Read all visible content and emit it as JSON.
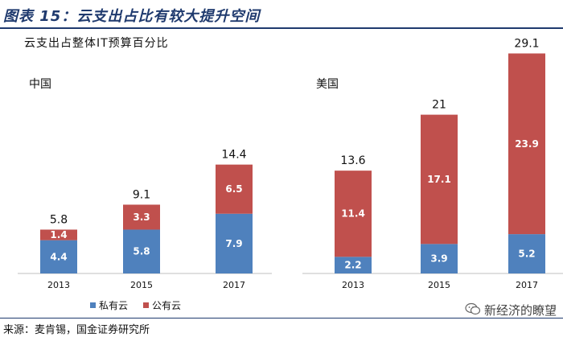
{
  "header": {
    "title": "图表 15：云支出占比有较大提升空间"
  },
  "footer": {
    "source": "来源：麦肯锡，国金证券研究所",
    "watermark": "新经济的瞭望"
  },
  "colors": {
    "private": "#4f81bd",
    "public": "#c0504d",
    "title": "#1f3a6e"
  },
  "chart_data": {
    "type": "bar",
    "stacked": true,
    "title": "云支出占整体IT预算百分比",
    "categories": [
      "2013",
      "2015",
      "2017"
    ],
    "legend": [
      "私有云",
      "公有云"
    ],
    "legend_position": "bottom-left",
    "panels": [
      {
        "name": "中国",
        "ylim": [
          0,
          30
        ],
        "totals": [
          "5.8",
          "9.1",
          "14.4"
        ],
        "series": [
          {
            "name": "私有云",
            "values": [
              4.4,
              5.8,
              7.9
            ]
          },
          {
            "name": "公有云",
            "values": [
              1.4,
              3.3,
              6.5
            ]
          }
        ]
      },
      {
        "name": "美国",
        "ylim": [
          0,
          30
        ],
        "totals": [
          "13.6",
          "21",
          "29.1"
        ],
        "series": [
          {
            "name": "私有云",
            "values": [
              2.2,
              3.9,
              5.2
            ]
          },
          {
            "name": "公有云",
            "values": [
              11.4,
              17.1,
              23.9
            ]
          }
        ]
      }
    ]
  }
}
